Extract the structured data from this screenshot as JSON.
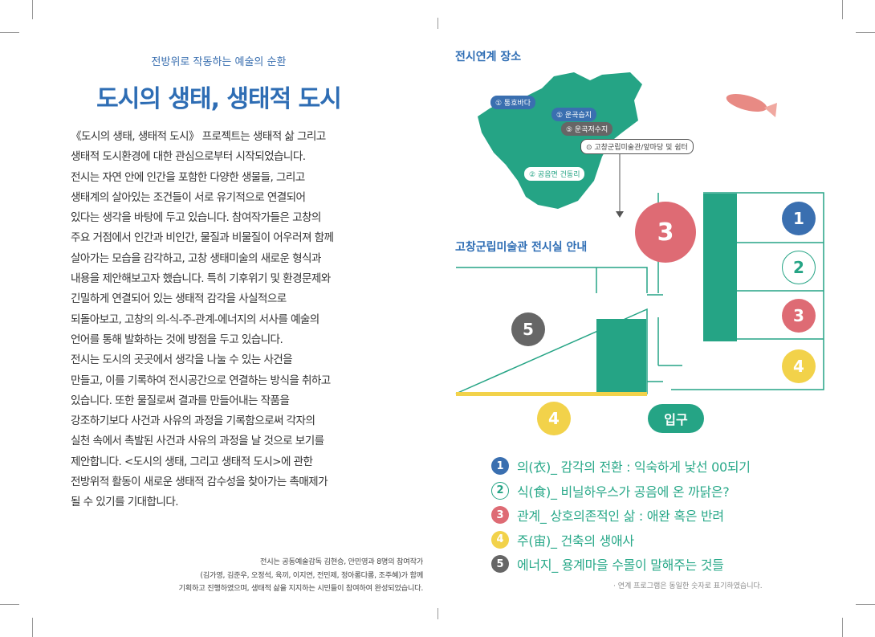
{
  "left": {
    "subtitle": "전방위로 작동하는 예술의 순환",
    "title": "도시의 생태, 생태적 도시",
    "body_lines": [
      "《도시의 생태, 생태적 도시》 프로젝트는 생태적 삶 그리고",
      "생태적 도시환경에 대한 관심으로부터 시작되었습니다.",
      "전시는 자연 안에 인간을 포함한 다양한 생물들, 그리고",
      "생태계의 살아있는 조건들이 서로 유기적으로 연결되어",
      "있다는 생각을 바탕에 두고 있습니다. 참여작가들은 고창의",
      "주요 거점에서 인간과 비인간, 물질과 비물질이 어우러져 함께",
      "살아가는 모습을 감각하고, 고창 생태미술의 새로운 형식과",
      "내용을 제안해보고자 했습니다. 특히 기후위기 및 환경문제와",
      "긴밀하게 연결되어 있는 생태적 감각을 사실적으로",
      "되돌아보고, 고창의 의-식-주-관계-에너지의 서사를 예술의",
      "언어를 통해 발화하는 것에 방점을 두고 있습니다.",
      "    전시는 도시의 곳곳에서 생각을 나눌 수 있는 사건을",
      "만들고, 이를 기록하여 전시공간으로 연결하는 방식을 취하고",
      "있습니다. 또한 물질로써 결과를 만들어내는 작품을",
      "강조하기보다 사건과 사유의 과정을 기록함으로써 각자의",
      "실천 속에서 촉발된 사건과 사유의 과정을 날 것으로 보기를",
      "제안합니다. <도시의 생태, 그리고 생태적 도시>에 관한",
      "전방위적 활동이 새로운 생태적 감수성을 찾아가는 촉매제가",
      "될 수 있기를 기대합니다."
    ],
    "credits": [
      "전시는 공동예술감독 김현승, 안민영과 8명의 참여작가",
      "(김가영, 김준우, 오정석, 육끼, 이지연, 전민제, 정아롱다롱, 조주혜)가 함께",
      "기획하고 진행하였으며, 생태적 삶을 지지하는 시민들이 참여하여 완성되었습니다."
    ]
  },
  "right": {
    "locations_heading": "전시연계 장소",
    "map_labels": [
      {
        "text": "① 통호바다",
        "color": "#3a6fb0"
      },
      {
        "text": "① 운곡습지",
        "color": "#3a6fb0"
      },
      {
        "text": "⑤ 운곡저수지",
        "color": "#666666"
      },
      {
        "text": "⊙ 고창군립미술관/앞마당 및 쉼터",
        "color": "#ffffff"
      },
      {
        "text": "② 공음면 건동리",
        "color": "#ffffff"
      }
    ],
    "plan_heading": "고창군립미술관 전시실 안내",
    "entrance_label": "입구",
    "room_numbers": {
      "one": "1",
      "two": "2",
      "three": "3",
      "four": "4",
      "five": "5"
    },
    "legend": [
      {
        "num": "1",
        "text": "의(衣)_ 감각의 전환 : 익숙하게 낯선 00되기",
        "color": "#3a6fb0"
      },
      {
        "num": "2",
        "text": "식(食)_ 비닐하우스가 공음에 온 까닭은?",
        "color": "#ffffff"
      },
      {
        "num": "3",
        "text": "관계_ 상호의존적인 삶 : 애완 혹은 반려",
        "color": "#de6b74"
      },
      {
        "num": "4",
        "text": "주(宙)_ 건축의 생애사",
        "color": "#f2d24a"
      },
      {
        "num": "5",
        "text": "에너지_ 용계마을 수몰이 말해주는 것들",
        "color": "#666666"
      }
    ],
    "note": "· 연계 프로그램은 동일한 숫자로 표기하였습니다."
  },
  "colors": {
    "teal": "#25a485",
    "blue": "#3a6fb0",
    "pink": "#de6b74",
    "yellow": "#f2d24a",
    "gray": "#666666"
  }
}
